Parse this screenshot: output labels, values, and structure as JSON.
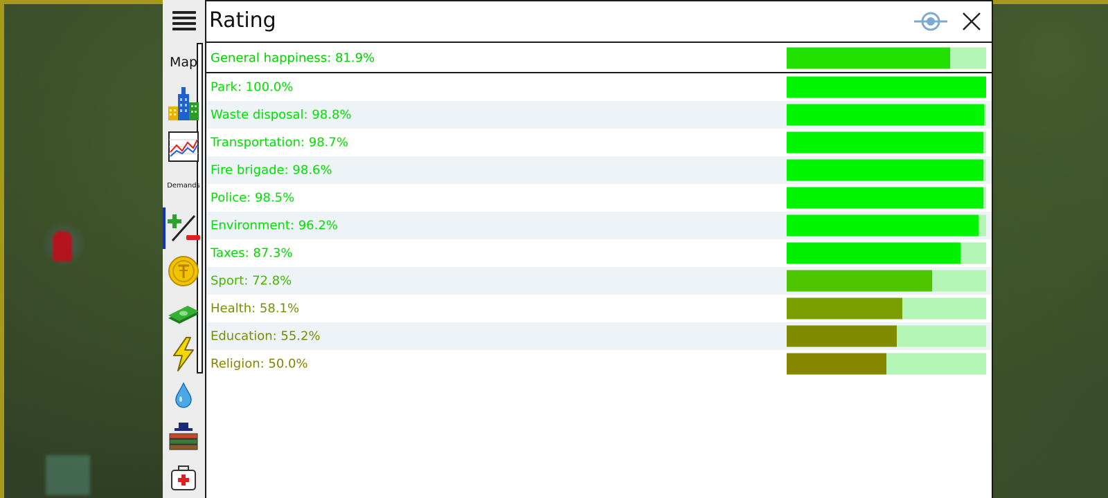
{
  "window": {
    "title": "Rating"
  },
  "sidebar": {
    "map_label": "Map",
    "demands_label": "Demands",
    "icons": [
      "menu-icon",
      "city-icon",
      "graph-icon",
      "plus-minus-icon",
      "coin-icon",
      "money-icon",
      "power-icon",
      "water-icon",
      "education-icon",
      "health-icon"
    ]
  },
  "colors": {
    "track": "#b3f5b4",
    "fill_high": "#00f500",
    "fill_good": "#22e000",
    "fill_mid": "#4cc400",
    "fill_low": "#7a9e00",
    "fill_lower": "#808c00",
    "fill_lowest": "#888800"
  },
  "general": {
    "label": "General happiness: 81.9%",
    "value": 81.9,
    "color": "#22e000",
    "text_color": "#00d000"
  },
  "ratings": [
    {
      "label": "Park: 100.0%",
      "value": 100.0,
      "color": "#00f500",
      "text_color": "#00e000"
    },
    {
      "label": "Waste disposal: 98.8%",
      "value": 98.8,
      "color": "#00f500",
      "text_color": "#00e000"
    },
    {
      "label": "Transportation: 98.7%",
      "value": 98.7,
      "color": "#00f500",
      "text_color": "#00e000"
    },
    {
      "label": "Fire brigade: 98.6%",
      "value": 98.6,
      "color": "#00f500",
      "text_color": "#00e000"
    },
    {
      "label": "Police: 98.5%",
      "value": 98.5,
      "color": "#00f500",
      "text_color": "#00e000"
    },
    {
      "label": "Environment: 96.2%",
      "value": 96.2,
      "color": "#00f500",
      "text_color": "#00e000"
    },
    {
      "label": "Taxes: 87.3%",
      "value": 87.3,
      "color": "#00f000",
      "text_color": "#00d800"
    },
    {
      "label": "Sport: 72.8%",
      "value": 72.8,
      "color": "#4cc400",
      "text_color": "#44b800"
    },
    {
      "label": "Health: 58.1%",
      "value": 58.1,
      "color": "#7a9e00",
      "text_color": "#6f9400"
    },
    {
      "label": "Education: 55.2%",
      "value": 55.2,
      "color": "#808c00",
      "text_color": "#7a8c00"
    },
    {
      "label": "Religion: 50.0%",
      "value": 50.0,
      "color": "#888800",
      "text_color": "#848400"
    }
  ]
}
